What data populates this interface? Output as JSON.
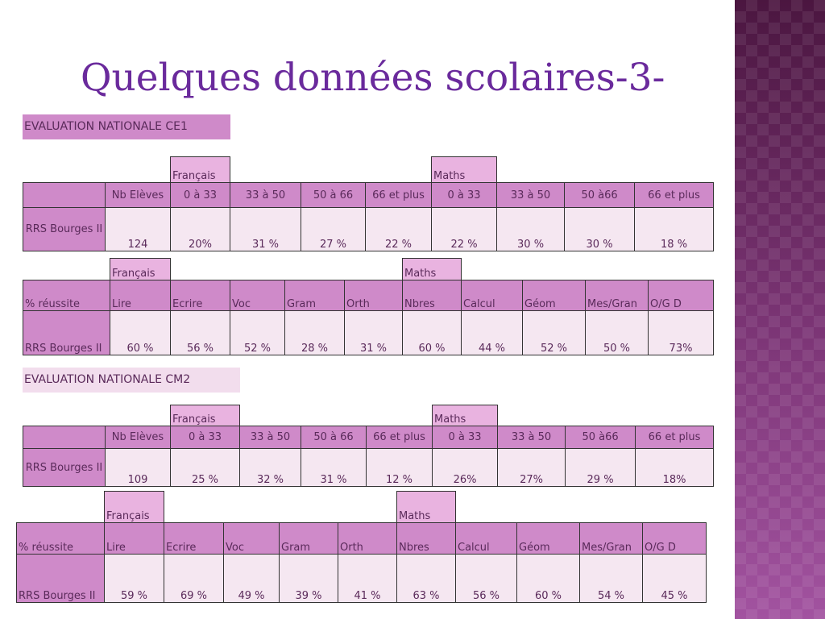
{
  "title": "Quelques données scolaires-3-",
  "ce1": {
    "label": "EVALUATION NATIONALE CE1",
    "scores": {
      "group_francais": "Français",
      "group_maths": "Maths",
      "headers": [
        "",
        "Nb Elèves",
        "0 à 33",
        "33 à 50",
        "50 à 66",
        "66 et plus",
        "0 à 33",
        "33 à 50",
        "50 à66",
        "66 et plus"
      ],
      "row": {
        "label": "RRS Bourges II",
        "values": [
          "124",
          "20%",
          "31 %",
          "27 %",
          "22 %",
          "22 %",
          "30 %",
          "30 %",
          "18 %"
        ]
      }
    },
    "reussite": {
      "group_francais": "Français",
      "group_maths": "Maths",
      "headers": [
        "% réussite",
        "Lire",
        "Ecrire",
        "Voc",
        "Gram",
        "Orth",
        "Nbres",
        "Calcul",
        "Géom",
        "Mes/Gran",
        "O/G  D"
      ],
      "row": {
        "label": "RRS Bourges II",
        "values": [
          "60 %",
          "56 %",
          "52 %",
          "28 %",
          "31 %",
          "60 %",
          "44 %",
          "52 %",
          "50 %",
          "73%"
        ]
      }
    }
  },
  "cm2": {
    "label": "EVALUATION NATIONALE CM2",
    "scores": {
      "group_francais": "Français",
      "group_maths": "Maths",
      "headers": [
        "",
        "Nb Elèves",
        "0 à 33",
        "33 à 50",
        "50 à 66",
        "66 et plus",
        "0 à 33",
        "33 à 50",
        "50 à66",
        "66 et plus"
      ],
      "row": {
        "label": "RRS Bourges II",
        "values": [
          "109",
          "25 %",
          "32 %",
          "31 %",
          "12 %",
          "26%",
          "27%",
          "29 %",
          "18%"
        ]
      }
    },
    "reussite": {
      "group_francais": "Français",
      "group_maths": "Maths",
      "headers": [
        "% réussite",
        "Lire",
        "Ecrire",
        "Voc",
        "Gram",
        "Orth",
        "Nbres",
        "Calcul",
        "Géom",
        "Mes/Gran",
        "O/G  D"
      ],
      "row": {
        "label": "RRS Bourges II",
        "values": [
          "59 %",
          "69 %",
          "49 %",
          "39 %",
          "41 %",
          "63 %",
          "56 %",
          "60 %",
          "54 %",
          "45 %"
        ]
      }
    }
  },
  "colors": {
    "title": "#6a2a9c",
    "header_fill": "#cf8ac9",
    "light_fill": "#f5e7f1",
    "side_band": "#7a2f72"
  }
}
